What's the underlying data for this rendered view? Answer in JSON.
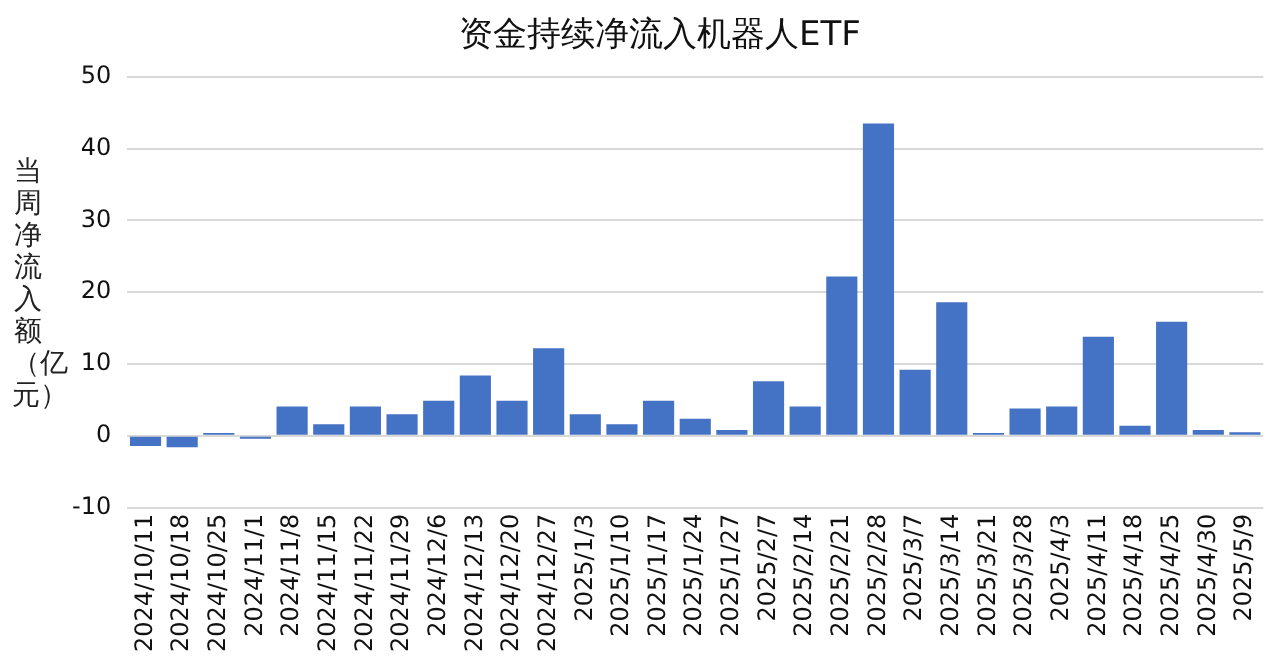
{
  "chart_data": {
    "type": "bar",
    "title": "资金持续净流入机器人ETF",
    "ylabel": "当周净流入额（亿元）",
    "categories": [
      "2024/10/11",
      "2024/10/18",
      "2024/10/25",
      "2024/11/1",
      "2024/11/8",
      "2024/11/15",
      "2024/11/22",
      "2024/11/29",
      "2024/12/6",
      "2024/12/13",
      "2024/12/20",
      "2024/12/27",
      "2025/1/3",
      "2025/1/10",
      "2025/1/17",
      "2025/1/24",
      "2025/1/27",
      "2025/2/7",
      "2025/2/14",
      "2025/2/21",
      "2025/2/28",
      "2025/3/7",
      "2025/3/14",
      "2025/3/21",
      "2025/3/28",
      "2025/4/3",
      "2025/4/11",
      "2025/4/18",
      "2025/4/25",
      "2025/4/30",
      "2025/5/9"
    ],
    "values": [
      -1.4,
      -1.6,
      0.4,
      -0.4,
      4.1,
      1.6,
      4.1,
      3.0,
      4.9,
      8.4,
      4.9,
      12.2,
      3.0,
      1.6,
      4.9,
      2.4,
      0.8,
      7.6,
      4.1,
      22.2,
      43.5,
      9.2,
      18.6,
      0.4,
      3.8,
      4.1,
      13.8,
      1.4,
      15.9,
      0.8,
      0.5
    ],
    "color": "#4472c4",
    "ylim": [
      -10,
      50
    ],
    "yticks": [
      -10,
      0,
      10,
      20,
      30,
      40,
      50
    ],
    "grid": "y"
  }
}
